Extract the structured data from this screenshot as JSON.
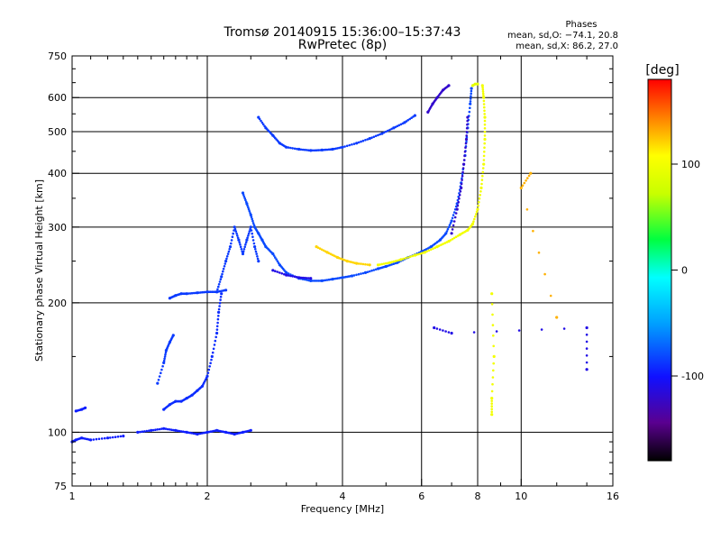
{
  "chart_data": {
    "type": "scatter",
    "title": "Tromsø 20140915 15:36:00–15:37:43",
    "subtitle": "RwPretec (8p)",
    "xlabel": "Frequency [MHz]",
    "ylabel": "Stationary phase Virtual Height [km]",
    "x_scale": "log",
    "y_scale": "log",
    "xlim": [
      1,
      16
    ],
    "ylim": [
      75,
      750
    ],
    "x_ticks": [
      1,
      2,
      4,
      6,
      8,
      10,
      16
    ],
    "y_ticks": [
      75,
      100,
      200,
      300,
      400,
      500,
      600,
      750
    ],
    "x_minor_ticks": [
      1.1,
      1.2,
      1.3,
      1.4,
      1.5,
      1.6,
      1.7,
      1.8,
      1.9,
      2.5,
      3,
      3.5,
      5,
      7,
      9,
      12,
      14
    ],
    "y_minor_ticks": [
      80,
      85,
      90,
      95,
      150,
      250,
      350,
      450,
      550,
      650,
      700
    ],
    "grid": true,
    "stats": {
      "heading": "Phases",
      "line_o": "mean, sd,O: −74.1, 20.8",
      "line_x": "mean, sd,X:  86.2, 27.0"
    },
    "colorbar": {
      "label": "[deg]",
      "range": [
        -180,
        180
      ],
      "ticks": [
        100,
        0,
        -100
      ]
    },
    "series": [
      {
        "color_value": -95,
        "points": [
          [
            1.0,
            95
          ],
          [
            1.02,
            96
          ],
          [
            1.05,
            97
          ],
          [
            1.1,
            96
          ],
          [
            1.2,
            97
          ],
          [
            1.3,
            98
          ]
        ]
      },
      {
        "color_value": -95,
        "points": [
          [
            1.02,
            112
          ],
          [
            1.05,
            113
          ],
          [
            1.07,
            114
          ]
        ]
      },
      {
        "color_value": -95,
        "points": [
          [
            1.4,
            100
          ],
          [
            1.5,
            101
          ],
          [
            1.6,
            102
          ],
          [
            1.7,
            101
          ],
          [
            1.8,
            100
          ],
          [
            1.9,
            99
          ],
          [
            2.0,
            100
          ],
          [
            2.1,
            101
          ],
          [
            2.2,
            100
          ],
          [
            2.3,
            99
          ],
          [
            2.4,
            100
          ],
          [
            2.5,
            101
          ]
        ]
      },
      {
        "color_value": -90,
        "points": [
          [
            1.6,
            113
          ],
          [
            1.65,
            116
          ],
          [
            1.7,
            118
          ],
          [
            1.75,
            118
          ],
          [
            1.8,
            120
          ],
          [
            1.85,
            122
          ],
          [
            1.9,
            125
          ],
          [
            1.95,
            128
          ],
          [
            2.0,
            135
          ],
          [
            2.05,
            150
          ],
          [
            2.1,
            170
          ],
          [
            2.12,
            190
          ],
          [
            2.15,
            210
          ]
        ]
      },
      {
        "color_value": -85,
        "points": [
          [
            1.55,
            130
          ],
          [
            1.6,
            145
          ],
          [
            1.62,
            155
          ],
          [
            1.65,
            162
          ],
          [
            1.68,
            168
          ]
        ]
      },
      {
        "color_value": -85,
        "points": [
          [
            1.65,
            205
          ],
          [
            1.7,
            208
          ],
          [
            1.75,
            210
          ],
          [
            1.8,
            210
          ],
          [
            1.9,
            211
          ],
          [
            2.0,
            212
          ],
          [
            2.1,
            212
          ],
          [
            2.2,
            214
          ]
        ]
      },
      {
        "color_value": -85,
        "points": [
          [
            2.1,
            212
          ],
          [
            2.15,
            230
          ],
          [
            2.2,
            250
          ],
          [
            2.25,
            270
          ],
          [
            2.3,
            300
          ],
          [
            2.35,
            280
          ],
          [
            2.4,
            260
          ],
          [
            2.45,
            280
          ],
          [
            2.5,
            300
          ],
          [
            2.55,
            270
          ],
          [
            2.6,
            250
          ]
        ]
      },
      {
        "color_value": -80,
        "points": [
          [
            2.4,
            360
          ],
          [
            2.45,
            340
          ],
          [
            2.5,
            320
          ],
          [
            2.55,
            300
          ],
          [
            2.6,
            290
          ],
          [
            2.65,
            280
          ],
          [
            2.7,
            270
          ],
          [
            2.8,
            260
          ],
          [
            2.9,
            245
          ],
          [
            3.0,
            235
          ],
          [
            3.2,
            228
          ],
          [
            3.4,
            225
          ],
          [
            3.6,
            225
          ],
          [
            3.8,
            227
          ],
          [
            4.0,
            229
          ],
          [
            4.2,
            231
          ],
          [
            4.5,
            235
          ],
          [
            4.8,
            240
          ],
          [
            5.0,
            243
          ],
          [
            5.3,
            248
          ],
          [
            5.6,
            255
          ],
          [
            6.0,
            263
          ],
          [
            6.3,
            270
          ],
          [
            6.6,
            280
          ],
          [
            6.8,
            290
          ],
          [
            7.0,
            310
          ],
          [
            7.2,
            340
          ],
          [
            7.35,
            380
          ],
          [
            7.5,
            440
          ],
          [
            7.6,
            510
          ],
          [
            7.7,
            580
          ],
          [
            7.75,
            630
          ]
        ]
      },
      {
        "color_value": -110,
        "points": [
          [
            2.8,
            238
          ],
          [
            3.0,
            232
          ],
          [
            3.2,
            229
          ],
          [
            3.4,
            228
          ]
        ]
      },
      {
        "color_value": -85,
        "points": [
          [
            2.6,
            540
          ],
          [
            2.7,
            510
          ],
          [
            2.8,
            490
          ],
          [
            2.9,
            470
          ],
          [
            3.0,
            460
          ],
          [
            3.2,
            455
          ],
          [
            3.4,
            452
          ],
          [
            3.6,
            453
          ],
          [
            3.8,
            455
          ],
          [
            4.0,
            460
          ],
          [
            4.3,
            470
          ],
          [
            4.6,
            482
          ],
          [
            4.9,
            495
          ],
          [
            5.2,
            510
          ],
          [
            5.5,
            525
          ],
          [
            5.8,
            545
          ]
        ]
      },
      {
        "color_value": -120,
        "points": [
          [
            6.2,
            555
          ],
          [
            6.35,
            580
          ],
          [
            6.5,
            600
          ],
          [
            6.7,
            625
          ],
          [
            6.9,
            640
          ]
        ]
      },
      {
        "color_value": -120,
        "points": [
          [
            7.0,
            290
          ],
          [
            7.2,
            330
          ],
          [
            7.35,
            370
          ],
          [
            7.45,
            420
          ],
          [
            7.55,
            480
          ],
          [
            7.6,
            540
          ]
        ]
      },
      {
        "color_value": 120,
        "points": [
          [
            3.5,
            270
          ],
          [
            3.7,
            262
          ],
          [
            3.9,
            255
          ],
          [
            4.1,
            250
          ],
          [
            4.3,
            247
          ],
          [
            4.6,
            245
          ]
        ]
      },
      {
        "color_value": 100,
        "points": [
          [
            4.8,
            245
          ],
          [
            5.1,
            248
          ],
          [
            5.4,
            252
          ],
          [
            5.8,
            258
          ],
          [
            6.1,
            262
          ],
          [
            6.5,
            270
          ],
          [
            6.9,
            278
          ],
          [
            7.3,
            288
          ],
          [
            7.6,
            295
          ],
          [
            7.8,
            305
          ],
          [
            8.0,
            330
          ],
          [
            8.15,
            370
          ],
          [
            8.25,
            420
          ],
          [
            8.3,
            480
          ],
          [
            8.3,
            540
          ],
          [
            8.25,
            600
          ],
          [
            8.2,
            640
          ]
        ]
      },
      {
        "color_value": 90,
        "points": [
          [
            7.8,
            640
          ],
          [
            7.9,
            645
          ],
          [
            8.0,
            645
          ]
        ]
      },
      {
        "color_value": 100,
        "points": [
          [
            8.6,
            210
          ],
          [
            8.7,
            150
          ],
          [
            8.6,
            120
          ],
          [
            8.6,
            110
          ]
        ]
      },
      {
        "color_value": 130,
        "points": [
          [
            12.0,
            185
          ],
          [
            10.0,
            370
          ],
          [
            10.5,
            400
          ]
        ]
      },
      {
        "color_value": -110,
        "points": [
          [
            6.4,
            175
          ],
          [
            7.0,
            170
          ],
          [
            14.0,
            175
          ],
          [
            14.0,
            140
          ]
        ]
      }
    ]
  }
}
